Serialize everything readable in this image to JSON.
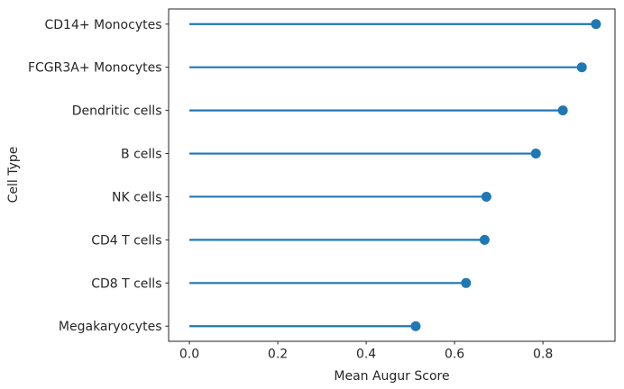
{
  "figure": {
    "title": ""
  },
  "chart_data": {
    "type": "lollipop",
    "orientation": "horizontal",
    "title": "",
    "xlabel": "Mean Augur Score",
    "ylabel": "Cell Type",
    "categories": [
      "CD14+ Monocytes",
      "FCGR3A+ Monocytes",
      "Dendritic cells",
      "B cells",
      "NK cells",
      "CD4 T cells",
      "CD8 T cells",
      "Megakaryocytes"
    ],
    "values": [
      0.92,
      0.888,
      0.845,
      0.784,
      0.672,
      0.668,
      0.626,
      0.512
    ],
    "stem_start": 0.0,
    "xticks": [
      {
        "value": 0.0,
        "label": "0.0"
      },
      {
        "value": 0.2,
        "label": "0.2"
      },
      {
        "value": 0.4,
        "label": "0.4"
      },
      {
        "value": 0.6,
        "label": "0.6"
      },
      {
        "value": 0.8,
        "label": "0.8"
      }
    ],
    "xlim": [
      -0.047,
      0.963
    ],
    "grid": false,
    "legend": null,
    "colors": {
      "stem": "#1f77b4",
      "dot": "#1f77b4",
      "spine": "#262626",
      "text": "#262626"
    }
  }
}
